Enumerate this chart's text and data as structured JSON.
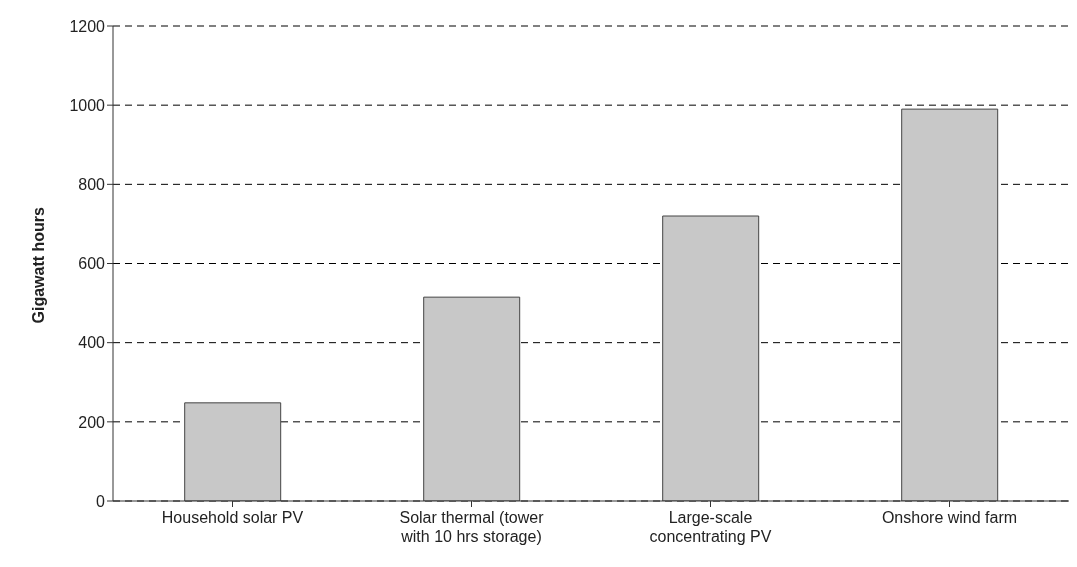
{
  "chart_data": {
    "type": "bar",
    "ylabel": "Gigawatt hours",
    "categories": [
      "Household solar PV",
      "Solar thermal (tower with 10 hrs storage)",
      "Large-scale concentrating PV",
      "Onshore wind farm"
    ],
    "values": [
      248,
      515,
      720,
      990
    ],
    "color": "#c8c8c8",
    "ylim": [
      0,
      1200
    ],
    "yticks": [
      0,
      200,
      400,
      600,
      800,
      1000,
      1200
    ],
    "grid": "y",
    "legend": false
  }
}
